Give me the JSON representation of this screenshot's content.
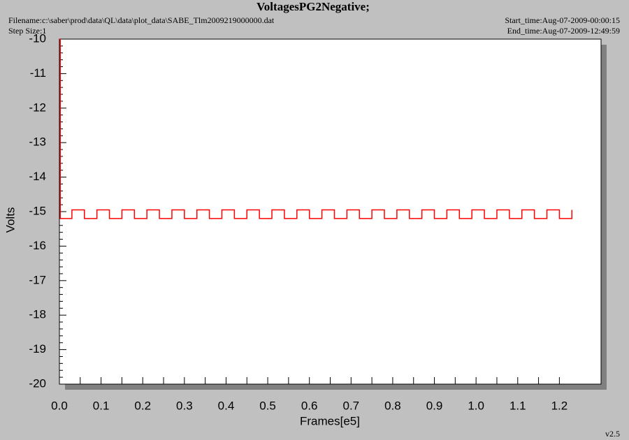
{
  "chart_data": {
    "type": "line",
    "title": "VoltagesPG2Negative;",
    "filename": "Filename:c:\\saber\\prod\\data\\QL\\data\\plot_data\\SABE_Tlm2009219000000.dat",
    "step_size": "Step Size:1",
    "start_time": "Start_time:Aug-07-2009-00:00:15",
    "end_time": "End_time:Aug-07-2009-12:49:59",
    "version": "v2.5",
    "xlabel": "Frames[e5]",
    "ylabel": "Volts",
    "xlim": [
      0,
      1.3
    ],
    "ylim": [
      -20,
      -10
    ],
    "xticks": [
      {
        "value": 0,
        "label": "0.0"
      },
      0.1,
      0.2,
      0.3,
      0.4,
      0.5,
      0.6,
      0.7,
      0.8,
      0.9,
      {
        "value": 1,
        "label": "1.0"
      },
      1.1,
      1.2
    ],
    "yticks": [
      -10,
      -11,
      -12,
      -13,
      -14,
      -15,
      -16,
      -17,
      -18,
      -19,
      -20
    ],
    "step": true,
    "series": [
      {
        "color": "#ff0000",
        "x": [
          0,
          0.002,
          0.03,
          0.06,
          0.09,
          0.12,
          0.15,
          0.18,
          0.21,
          0.24,
          0.27,
          0.3,
          0.33,
          0.36,
          0.39,
          0.42,
          0.45,
          0.48,
          0.51,
          0.54,
          0.57,
          0.6,
          0.63,
          0.66,
          0.69,
          0.72,
          0.75,
          0.78,
          0.81,
          0.84,
          0.87,
          0.9,
          0.93,
          0.96,
          0.99,
          1.02,
          1.05,
          1.08,
          1.11,
          1.14,
          1.17,
          1.2,
          1.23
        ],
        "values": [
          -10,
          -15.2,
          -14.95,
          -15.2,
          -14.95,
          -15.2,
          -14.95,
          -15.2,
          -14.95,
          -15.2,
          -14.95,
          -15.2,
          -14.95,
          -15.2,
          -14.95,
          -15.2,
          -14.95,
          -15.2,
          -14.95,
          -15.2,
          -14.95,
          -15.2,
          -14.95,
          -15.2,
          -14.95,
          -15.2,
          -14.95,
          -15.2,
          -14.95,
          -15.2,
          -14.95,
          -15.2,
          -14.95,
          -15.2,
          -14.95,
          -15.2,
          -14.95,
          -15.2,
          -14.95,
          -15.2,
          -14.95,
          -15.2,
          -14.95
        ]
      }
    ]
  }
}
